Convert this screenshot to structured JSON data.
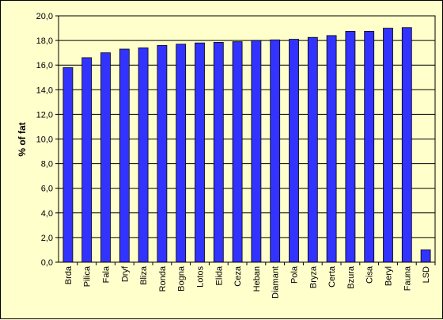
{
  "chart_data": {
    "type": "bar",
    "title": "",
    "xlabel": "",
    "ylabel": "% of fat",
    "ylim": [
      0,
      20
    ],
    "yticks": [
      "0,0",
      "2,0",
      "4,0",
      "6,0",
      "8,0",
      "10,0",
      "12,0",
      "14,0",
      "16,0",
      "18,0",
      "20,0"
    ],
    "categories": [
      "Brda",
      "Pilica",
      "Fala",
      "Dryf",
      "Bliza",
      "Ronda",
      "Bogna",
      "Lotos",
      "Elida",
      "Ceza",
      "Heban",
      "Diamant",
      "Pola",
      "Bryza",
      "Certa",
      "Bzura",
      "Cisa",
      "Beryl",
      "Fauna",
      "LSD"
    ],
    "values": [
      15.8,
      16.6,
      17.0,
      17.3,
      17.4,
      17.6,
      17.7,
      17.8,
      17.85,
      17.9,
      18.0,
      18.05,
      18.1,
      18.25,
      18.4,
      18.75,
      18.75,
      19.0,
      19.05,
      1.0
    ],
    "grid": true,
    "legend": "none",
    "colors": {
      "bar": "#3333ff",
      "background": "#ffffcc",
      "plot_area": "#ffffcc",
      "gridline": "#000000"
    }
  }
}
